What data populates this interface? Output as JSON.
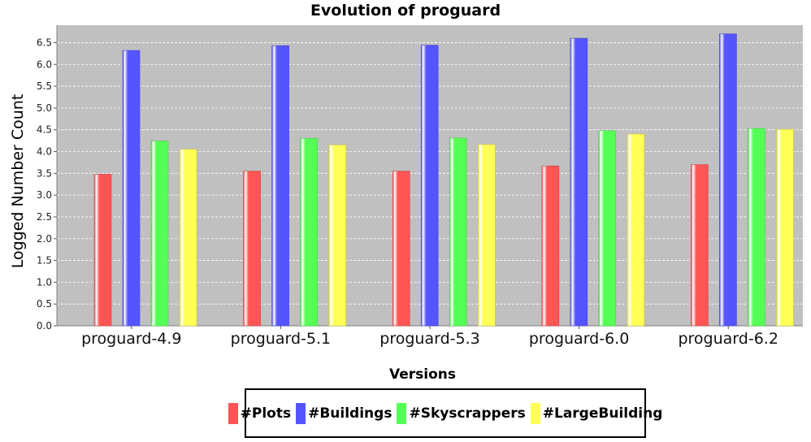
{
  "chart_data": {
    "type": "bar",
    "title": "Evolution of proguard",
    "xlabel": "Versions",
    "ylabel": "Logged Number Count",
    "ylim": [
      0,
      6.9
    ],
    "yticks": [
      "0.0",
      "0.5",
      "1.0",
      "1.5",
      "2.0",
      "2.5",
      "3.0",
      "3.5",
      "4.0",
      "4.5",
      "5.0",
      "5.5",
      "6.0",
      "6.5"
    ],
    "categories": [
      "proguard-4.9",
      "proguard-5.1",
      "proguard-5.3",
      "proguard-6.0",
      "proguard-6.2"
    ],
    "series": [
      {
        "name": "#Plots",
        "color": "#ff5555",
        "values": [
          3.48,
          3.55,
          3.55,
          3.67,
          3.7
        ]
      },
      {
        "name": "#Buildings",
        "color": "#5555ff",
        "values": [
          6.32,
          6.43,
          6.44,
          6.6,
          6.7
        ]
      },
      {
        "name": "#Skyscrappers",
        "color": "#55ff55",
        "values": [
          4.24,
          4.3,
          4.31,
          4.48,
          4.53
        ]
      },
      {
        "name": "#LargeBuilding",
        "color": "#ffff55",
        "values": [
          4.05,
          4.15,
          4.16,
          4.4,
          4.51
        ]
      }
    ],
    "grid": true,
    "legend": "bottom-center"
  }
}
